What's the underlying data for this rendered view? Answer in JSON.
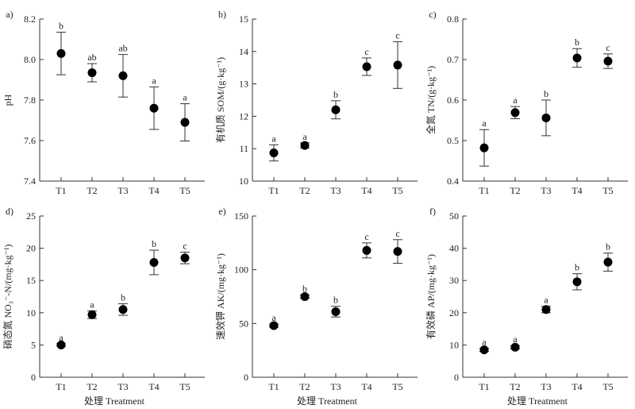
{
  "x_axis_title": "处理 Treatment",
  "chart_data": [
    {
      "type": "scatter",
      "panel": "a)",
      "ylabel": "pH",
      "categories": [
        "T1",
        "T2",
        "T3",
        "T4",
        "T5"
      ],
      "values": [
        8.03,
        7.935,
        7.92,
        7.76,
        7.69
      ],
      "errors": [
        0.105,
        0.045,
        0.105,
        0.105,
        0.092
      ],
      "letters": [
        "b",
        "ab",
        "ab",
        "a",
        "a"
      ],
      "ylim": [
        7.4,
        8.2
      ],
      "yticks": [
        "7.4",
        "7.6",
        "7.8",
        "8.0",
        "8.2"
      ]
    },
    {
      "type": "scatter",
      "panel": "b)",
      "ylabel": "有机质 SOM/(g·kg⁻¹)",
      "categories": [
        "T1",
        "T2",
        "T3",
        "T4",
        "T5"
      ],
      "values": [
        10.87,
        11.1,
        12.2,
        13.53,
        13.58
      ],
      "errors": [
        0.25,
        0.08,
        0.28,
        0.27,
        0.72
      ],
      "letters": [
        "a",
        "a",
        "b",
        "c",
        "c"
      ],
      "ylim": [
        10,
        15
      ],
      "yticks": [
        "10",
        "11",
        "12",
        "13",
        "14",
        "15"
      ]
    },
    {
      "type": "scatter",
      "panel": "c)",
      "ylabel": "全氮 TN/(g·kg⁻¹)",
      "categories": [
        "T1",
        "T2",
        "T3",
        "T4",
        "T5"
      ],
      "values": [
        0.482,
        0.569,
        0.556,
        0.704,
        0.696
      ],
      "errors": [
        0.045,
        0.015,
        0.044,
        0.023,
        0.018
      ],
      "letters": [
        "a",
        "a",
        "b",
        "b",
        "c"
      ],
      "ylim": [
        0.4,
        0.8
      ],
      "yticks": [
        "0.4",
        "0.5",
        "0.6",
        "0.7",
        "0.8"
      ]
    },
    {
      "type": "scatter",
      "panel": "d)",
      "ylabel": "硝态氮 NO₃⁻-N/(mg·kg⁻¹)",
      "categories": [
        "T1",
        "T2",
        "T3",
        "T4",
        "T5"
      ],
      "values": [
        5.0,
        9.7,
        10.5,
        17.8,
        18.5
      ],
      "errors": [
        0.2,
        0.6,
        0.9,
        1.9,
        0.9
      ],
      "letters": [
        "a",
        "a",
        "b",
        "b",
        "c"
      ],
      "ylim": [
        0,
        25
      ],
      "yticks": [
        "0",
        "5",
        "10",
        "15",
        "20",
        "25"
      ]
    },
    {
      "type": "scatter",
      "panel": "e)",
      "ylabel": "速效钾 AK/(mg·kg⁻¹)",
      "categories": [
        "T1",
        "T2",
        "T3",
        "T4",
        "T5"
      ],
      "values": [
        48,
        75,
        61,
        118,
        117
      ],
      "errors": [
        1.5,
        1.5,
        5,
        7,
        11
      ],
      "letters": [
        "a",
        "b",
        "b",
        "c",
        "c"
      ],
      "ylim": [
        0,
        150
      ],
      "yticks": [
        "0",
        "50",
        "100",
        "150"
      ]
    },
    {
      "type": "scatter",
      "panel": "f)",
      "ylabel": "有效磷 AP/(mg·kg⁻¹)",
      "categories": [
        "T1",
        "T2",
        "T3",
        "T4",
        "T5"
      ],
      "values": [
        8.5,
        9.3,
        21,
        29.6,
        35.7
      ],
      "errors": [
        0.5,
        0.5,
        1,
        2.5,
        2.8
      ],
      "letters": [
        "a",
        "a",
        "a",
        "b",
        "b"
      ],
      "ylim": [
        0,
        50
      ],
      "yticks": [
        "0",
        "10",
        "20",
        "30",
        "40",
        "50"
      ]
    }
  ]
}
